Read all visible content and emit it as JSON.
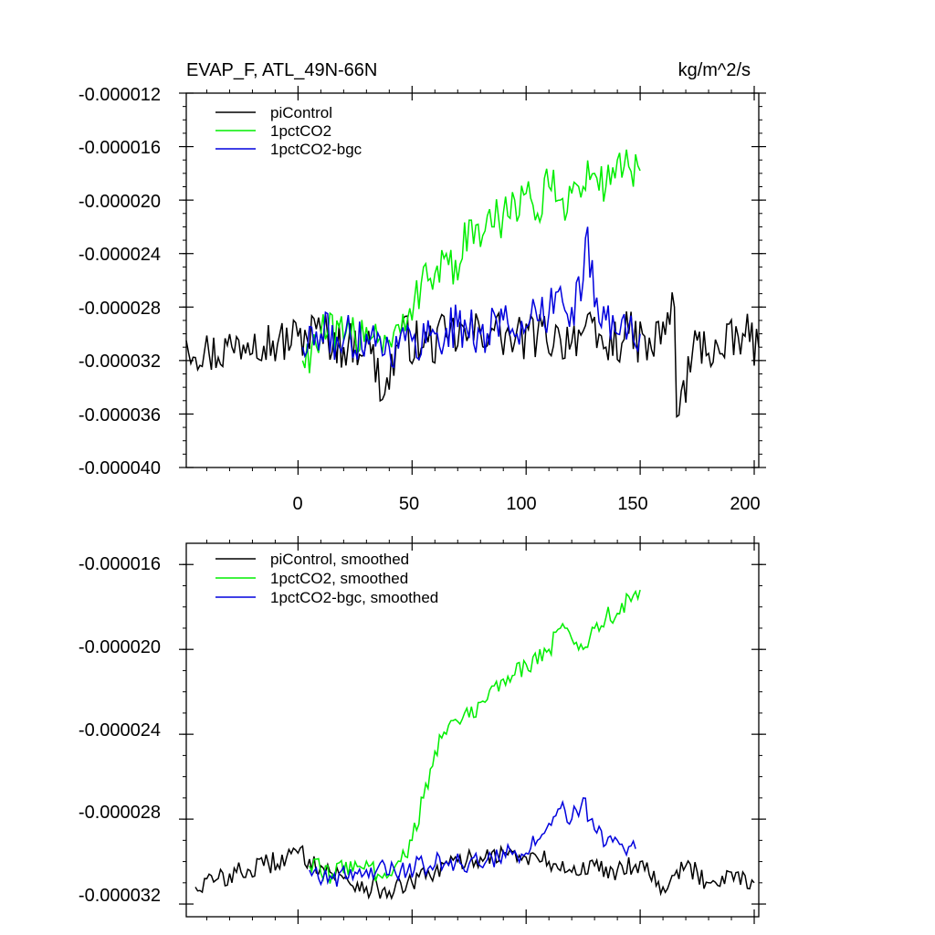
{
  "chart_data": [
    {
      "type": "line",
      "title": "EVAP_F, ATL_49N-66N",
      "units": "kg/m^2/s",
      "xlabel": "",
      "ylabel": "",
      "xlim": [
        -49,
        202
      ],
      "ylim": [
        -4e-05,
        -1.2e-05
      ],
      "xticks": [
        0,
        50,
        100,
        150,
        200
      ],
      "xtick_labels": [
        "0",
        "50",
        "100",
        "150",
        "200"
      ],
      "yticks": [
        -1.2e-05,
        -1.6e-05,
        -2e-05,
        -2.4e-05,
        -2.8e-05,
        -3.2e-05,
        -3.6e-05,
        -4e-05
      ],
      "ytick_labels": [
        "-0.000012",
        "-0.000016",
        "-0.000020",
        "-0.000024",
        "-0.000028",
        "-0.000032",
        "-0.000036",
        "-0.000040"
      ],
      "legend_position": "top-left",
      "series": [
        {
          "name": "piControl",
          "color": "#000000",
          "x": [
            -49,
            -39,
            -29,
            -19,
            -9,
            0,
            10,
            20,
            30,
            38,
            45,
            55,
            65,
            75,
            85,
            95,
            105,
            115,
            125,
            135,
            145,
            155,
            165,
            166,
            175,
            185,
            195,
            202
          ],
          "values": [
            -3.05e-05,
            -3.15e-05,
            -3.1e-05,
            -3e-05,
            -3.08e-05,
            -3.02e-05,
            -2.98e-05,
            -3.1e-05,
            -3.05e-05,
            -3.45e-05,
            -3e-05,
            -3.1e-05,
            -3.02e-05,
            -3e-05,
            -2.96e-05,
            -3.06e-05,
            -3e-05,
            -3.04e-05,
            -2.98e-05,
            -3.1e-05,
            -3e-05,
            -3.12e-05,
            -2.8e-05,
            -3.62e-05,
            -3.05e-05,
            -3.15e-05,
            -3e-05,
            -3.1e-05
          ]
        },
        {
          "name": "1pctCO2",
          "color": "#00ee00",
          "x": [
            2,
            10,
            20,
            30,
            40,
            50,
            55,
            60,
            65,
            70,
            75,
            80,
            85,
            90,
            95,
            100,
            105,
            110,
            115,
            120,
            125,
            130,
            135,
            140,
            145,
            150
          ],
          "values": [
            -3.2e-05,
            -3e-05,
            -3.05e-05,
            -2.95e-05,
            -3.05e-05,
            -2.9e-05,
            -2.5e-05,
            -2.55e-05,
            -2.4e-05,
            -2.6e-05,
            -2.15e-05,
            -2.35e-05,
            -2.2e-05,
            -2.1e-05,
            -2e-05,
            -1.95e-05,
            -2.1e-05,
            -1.9e-05,
            -2e-05,
            -1.95e-05,
            -1.9e-05,
            -1.8e-05,
            -1.9e-05,
            -1.7e-05,
            -1.75e-05,
            -1.78e-05
          ]
        },
        {
          "name": "1pctCO2-bgc",
          "color": "#0000dd",
          "x": [
            2,
            10,
            20,
            30,
            40,
            50,
            60,
            70,
            80,
            90,
            100,
            105,
            110,
            115,
            120,
            125,
            127,
            130,
            135,
            140,
            145,
            150
          ],
          "values": [
            -3.1e-05,
            -3e-05,
            -3.05e-05,
            -3e-05,
            -3.1e-05,
            -3.05e-05,
            -3e-05,
            -2.95e-05,
            -3e-05,
            -2.9e-05,
            -2.95e-05,
            -2.9e-05,
            -2.85e-05,
            -2.65e-05,
            -2.8e-05,
            -2.6e-05,
            -2.2e-05,
            -2.8e-05,
            -2.9e-05,
            -3e-05,
            -2.95e-05,
            -3e-05
          ]
        }
      ]
    },
    {
      "type": "line",
      "title": "",
      "xlabel": "",
      "ylabel": "",
      "xlim": [
        -49,
        202
      ],
      "ylim": [
        -3.26e-05,
        -1.5e-05
      ],
      "xticks": [
        0,
        50,
        100,
        150,
        200
      ],
      "yticks": [
        -1.6e-05,
        -2e-05,
        -2.4e-05,
        -2.8e-05,
        -3.2e-05
      ],
      "ytick_labels": [
        "-0.000016",
        "-0.000020",
        "-0.000024",
        "-0.000028",
        "-0.000032"
      ],
      "legend_position": "top-left",
      "series": [
        {
          "name": "piControl, smoothed",
          "color": "#000000",
          "x": [
            -45,
            -35,
            -25,
            -15,
            -5,
            0,
            10,
            20,
            30,
            40,
            50,
            60,
            70,
            80,
            90,
            100,
            110,
            120,
            130,
            140,
            150,
            160,
            170,
            180,
            190,
            200
          ],
          "values": [
            -3.12e-05,
            -3.08e-05,
            -3.05e-05,
            -3.02e-05,
            -2.98e-05,
            -2.96e-05,
            -3.02e-05,
            -3.08e-05,
            -3.12e-05,
            -3.14e-05,
            -3.1e-05,
            -3.05e-05,
            -3e-05,
            -2.98e-05,
            -2.96e-05,
            -2.98e-05,
            -3e-05,
            -3.05e-05,
            -3.02e-05,
            -3.04e-05,
            -3e-05,
            -3.12e-05,
            -3.02e-05,
            -3.1e-05,
            -3.05e-05,
            -3.1e-05
          ]
        },
        {
          "name": "1pctCO2, smoothed",
          "color": "#00ee00",
          "x": [
            5,
            15,
            25,
            35,
            45,
            50,
            55,
            60,
            65,
            70,
            75,
            80,
            90,
            100,
            110,
            115,
            120,
            125,
            130,
            135,
            140,
            145,
            150
          ],
          "values": [
            -3.02e-05,
            -3.06e-05,
            -3e-05,
            -3.06e-05,
            -3e-05,
            -2.9e-05,
            -2.7e-05,
            -2.48e-05,
            -2.4e-05,
            -2.34e-05,
            -2.32e-05,
            -2.25e-05,
            -2.14e-05,
            -2.07e-05,
            -2e-05,
            -1.9e-05,
            -1.95e-05,
            -2e-05,
            -1.9e-05,
            -1.85e-05,
            -1.83e-05,
            -1.75e-05,
            -1.72e-05
          ]
        },
        {
          "name": "1pctCO2-bgc, smoothed",
          "color": "#0000dd",
          "x": [
            5,
            15,
            25,
            35,
            45,
            55,
            65,
            75,
            85,
            95,
            100,
            105,
            110,
            115,
            120,
            125,
            130,
            135,
            140,
            145,
            148
          ],
          "values": [
            -3.04e-05,
            -3.08e-05,
            -3.05e-05,
            -3.03e-05,
            -3.04e-05,
            -3.02e-05,
            -3e-05,
            -3.01e-05,
            -2.98e-05,
            -2.95e-05,
            -2.96e-05,
            -2.9e-05,
            -2.82e-05,
            -2.75e-05,
            -2.8e-05,
            -2.7e-05,
            -2.85e-05,
            -2.92e-05,
            -2.9e-05,
            -2.93e-05,
            -2.94e-05
          ]
        }
      ]
    }
  ]
}
